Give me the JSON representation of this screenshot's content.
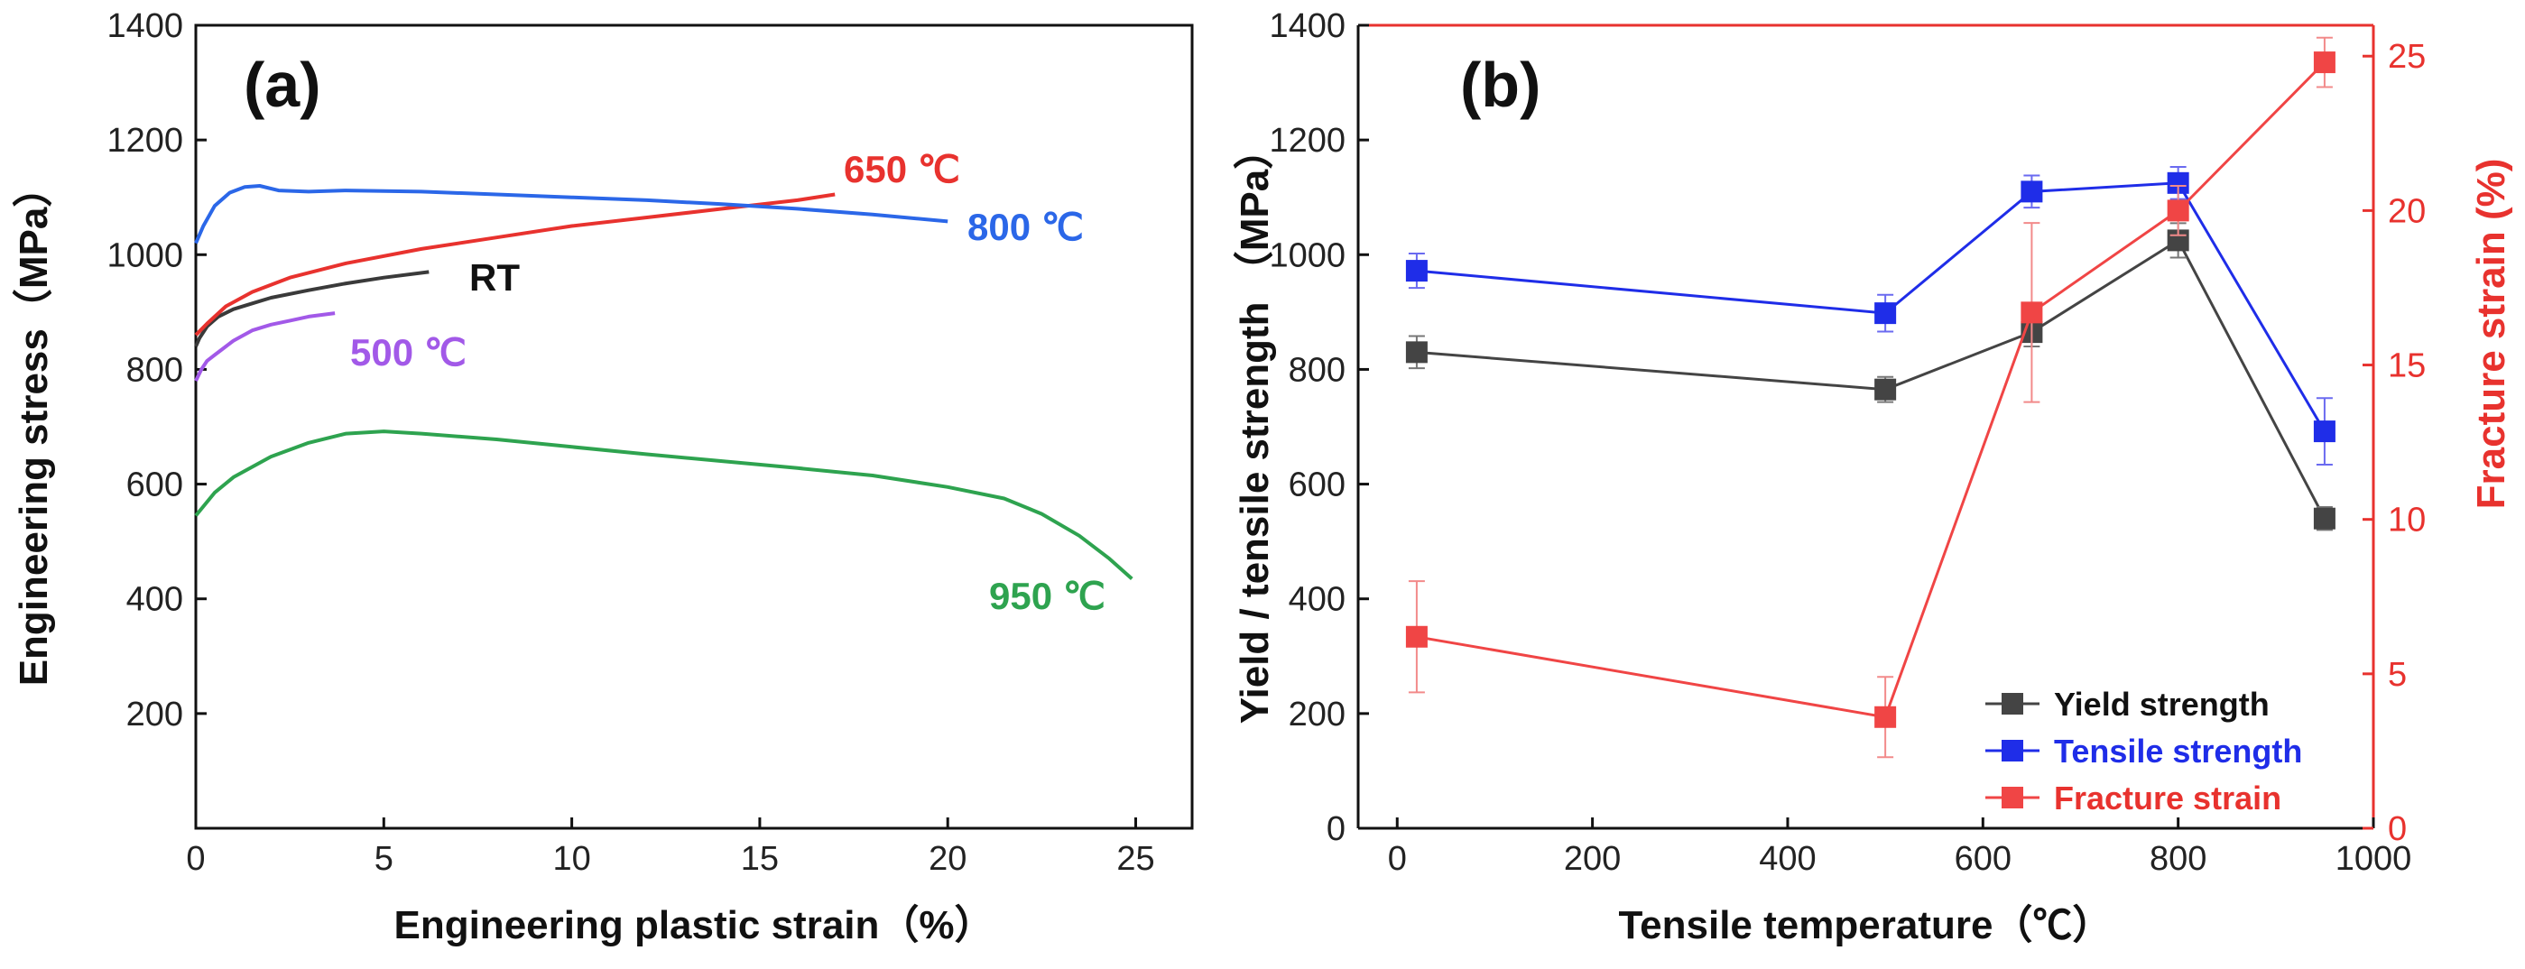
{
  "chart_data": [
    {
      "panel": "(a)",
      "type": "line",
      "xlabel": "Engineering plastic strain（%）",
      "ylabel": "Engineering stress（MPa）",
      "xlim": [
        0,
        26.5
      ],
      "ylim": [
        0,
        1400
      ],
      "xticks": [
        "0",
        "5",
        "10",
        "15",
        "20",
        "25"
      ],
      "yticks": [
        "200",
        "400",
        "600",
        "800",
        "1000",
        "1200",
        "1400"
      ],
      "series": [
        {
          "name": "RT",
          "label": "RT",
          "color": "#3a3a3a",
          "x": [
            0,
            0.1,
            0.3,
            0.6,
            1,
            1.5,
            2,
            3,
            4,
            5,
            6.2
          ],
          "y": [
            840,
            855,
            875,
            892,
            905,
            915,
            925,
            938,
            950,
            960,
            970
          ]
        },
        {
          "name": "500",
          "label": "500 ℃",
          "color": "#a259e8",
          "x": [
            0,
            0.15,
            0.3,
            0.5,
            0.8,
            1,
            1.5,
            2,
            2.5,
            3,
            3.7
          ],
          "y": [
            780,
            800,
            815,
            825,
            840,
            850,
            868,
            878,
            885,
            892,
            898
          ]
        },
        {
          "name": "650",
          "label": "650 ℃",
          "color": "#e8322e",
          "x": [
            0,
            0.3,
            0.8,
            1.5,
            2.5,
            4,
            6,
            8,
            10,
            12,
            14,
            16,
            17
          ],
          "y": [
            860,
            880,
            910,
            935,
            960,
            985,
            1010,
            1030,
            1050,
            1065,
            1080,
            1095,
            1105
          ]
        },
        {
          "name": "800",
          "label": "800 ℃",
          "color": "#2b67e8",
          "x": [
            0,
            0.2,
            0.5,
            0.9,
            1.3,
            1.7,
            2.2,
            3,
            4,
            6,
            8,
            10,
            12,
            14,
            16,
            18,
            20
          ],
          "y": [
            1020,
            1050,
            1085,
            1108,
            1118,
            1120,
            1112,
            1110,
            1112,
            1110,
            1105,
            1100,
            1095,
            1088,
            1080,
            1070,
            1058
          ]
        },
        {
          "name": "950",
          "label": "950 ℃",
          "color": "#2ea34f",
          "x": [
            0,
            0.5,
            1,
            2,
            3,
            4,
            5,
            6,
            8,
            10,
            12,
            14,
            16,
            18,
            20,
            21.5,
            22.5,
            23.5,
            24.3,
            24.9
          ],
          "y": [
            545,
            585,
            612,
            648,
            672,
            688,
            692,
            688,
            678,
            665,
            652,
            640,
            628,
            615,
            595,
            575,
            548,
            510,
            470,
            435
          ]
        }
      ]
    },
    {
      "panel": "(b)",
      "type": "line",
      "xlabel": "Tensile temperature（℃）",
      "ylabel": "Yield / tensile strength （MPa）",
      "y2label": "Fracture strain (%)",
      "xlim": [
        -40,
        1000
      ],
      "ylim": [
        0,
        1400
      ],
      "y2lim": [
        0,
        26
      ],
      "xticks": [
        "0",
        "200",
        "400",
        "600",
        "800",
        "1000"
      ],
      "yticks": [
        "0",
        "200",
        "400",
        "600",
        "800",
        "1000",
        "1200",
        "1400"
      ],
      "y2ticks": [
        "0",
        "5",
        "10",
        "15",
        "20",
        "25"
      ],
      "x": [
        20,
        500,
        650,
        800,
        950
      ],
      "series": [
        {
          "name": "Yield strength",
          "axis": "left",
          "color": "#444444",
          "values": [
            830,
            765,
            865,
            1025,
            540
          ],
          "errors": [
            28,
            22,
            25,
            30,
            20
          ]
        },
        {
          "name": "Tensile strength",
          "axis": "left",
          "color": "#1f2de8",
          "values": [
            972,
            898,
            1110,
            1125,
            692
          ],
          "errors": [
            30,
            32,
            28,
            28,
            58
          ]
        },
        {
          "name": "Fracture strain",
          "axis": "right",
          "color": "#f04545",
          "values": [
            6.2,
            3.6,
            16.7,
            20.0,
            24.8
          ],
          "errors": [
            1.8,
            1.3,
            2.9,
            0.8,
            0.8
          ]
        }
      ],
      "legend_position": "bottom-right"
    }
  ]
}
